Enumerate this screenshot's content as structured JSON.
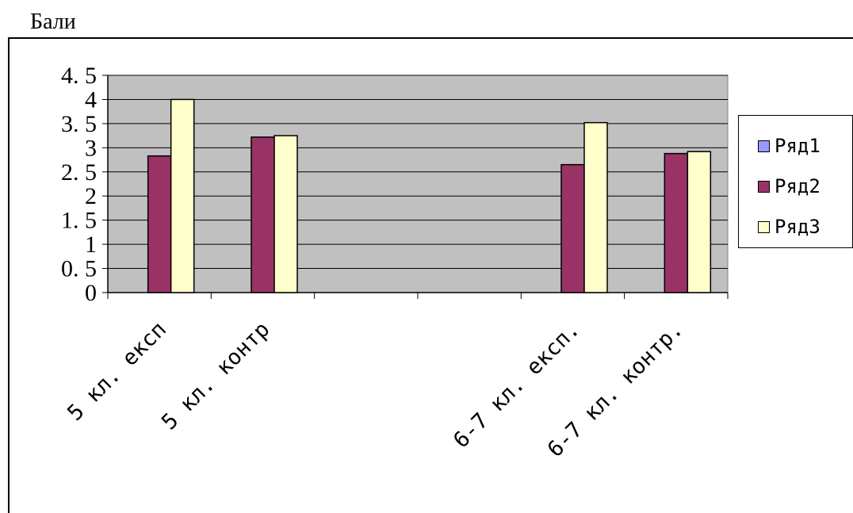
{
  "page": {
    "title": "Бали"
  },
  "colors": {
    "plot_bg": "#c0c0c0",
    "series1": "#9999ff",
    "series2": "#993366",
    "series3": "#ffffcc"
  },
  "chart_data": {
    "type": "bar",
    "title": "Бали",
    "categories": [
      "5 кл. експ",
      "5 кл. контр",
      "",
      "",
      "6-7 кл. експ.",
      "6-7 кл. контр."
    ],
    "ylim": [
      0,
      4.5
    ],
    "yticks": [
      "0",
      "0. 5",
      "1",
      "1. 5",
      "2",
      "2. 5",
      "3",
      "3. 5",
      "4",
      "4. 5"
    ],
    "grid": true,
    "legend": "right",
    "series": [
      {
        "name": "Ряд1",
        "values": [
          null,
          null,
          null,
          null,
          null,
          null
        ]
      },
      {
        "name": "Ряд2",
        "values": [
          2.83,
          3.22,
          null,
          null,
          2.65,
          2.88
        ]
      },
      {
        "name": "Ряд3",
        "values": [
          4.0,
          3.25,
          null,
          null,
          3.52,
          2.92
        ]
      }
    ]
  }
}
